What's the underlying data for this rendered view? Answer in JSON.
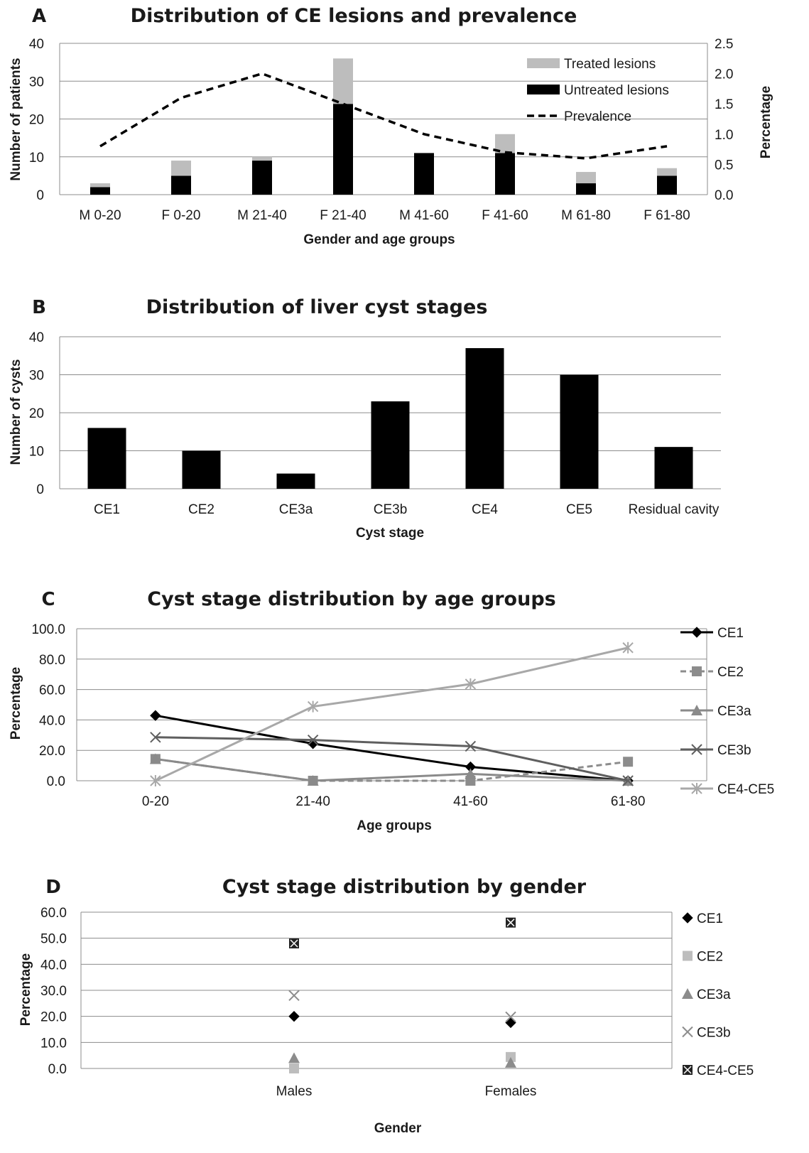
{
  "chart_data": [
    {
      "panel": "A",
      "type": "bar",
      "title": "Distribution of CE lesions and prevalence",
      "xlabel": "Gender and age groups",
      "ylabel": "Number of patients",
      "ylabel_right": "Percentage",
      "categories": [
        "M 0-20",
        "F 0-20",
        "M 21-40",
        "F 21-40",
        "M 41-60",
        "F 41-60",
        "M 61-80",
        "F 61-80"
      ],
      "ylim": [
        0,
        40
      ],
      "yticks": [
        "0",
        "10",
        "20",
        "30",
        "40"
      ],
      "ylim_right": [
        0,
        2.5
      ],
      "yticks_right": [
        "0.0",
        "0.5",
        "1.0",
        "1.5",
        "2.0",
        "2.5"
      ],
      "stacked": true,
      "series": [
        {
          "name": "Untreated lesions",
          "kind": "bar",
          "color": "#000000",
          "values": [
            2,
            5,
            9,
            24,
            11,
            11,
            3,
            5
          ]
        },
        {
          "name": "Treated lesions",
          "kind": "bar",
          "color": "#bdbdbd",
          "values": [
            1,
            4,
            1,
            12,
            0,
            5,
            3,
            2
          ]
        },
        {
          "name": "Prevalence",
          "kind": "line",
          "axis": "right",
          "dash": "dashed",
          "color": "#000000",
          "values": [
            0.8,
            1.6,
            2.0,
            1.5,
            1.0,
            0.7,
            0.6,
            0.8
          ]
        }
      ],
      "legend_position": "top-right",
      "grid": true
    },
    {
      "panel": "B",
      "type": "bar",
      "title": "Distribution of liver cyst stages",
      "xlabel": "Cyst stage",
      "ylabel": "Number of cysts",
      "categories": [
        "CE1",
        "CE2",
        "CE3a",
        "CE3b",
        "CE4",
        "CE5",
        "Residual cavity"
      ],
      "values": [
        16,
        10,
        4,
        23,
        37,
        30,
        11
      ],
      "ylim": [
        0,
        40
      ],
      "yticks": [
        "0",
        "10",
        "20",
        "30",
        "40"
      ],
      "color": "#000000",
      "grid": true
    },
    {
      "panel": "C",
      "type": "line",
      "title": "Cyst stage distribution by age groups",
      "xlabel": "Age groups",
      "ylabel": "Percentage",
      "categories": [
        "0-20",
        "21-40",
        "41-60",
        "61-80"
      ],
      "ylim": [
        0,
        100
      ],
      "yticks": [
        "0.0",
        "20.0",
        "40.0",
        "60.0",
        "80.0",
        "100.0"
      ],
      "series": [
        {
          "name": "CE1",
          "values": [
            42.9,
            24.4,
            9.1,
            0.0
          ],
          "color": "#000000",
          "marker": "diamond",
          "dash": "solid"
        },
        {
          "name": "CE2",
          "values": [
            14.3,
            0.0,
            0.0,
            12.5
          ],
          "color": "#8c8c8c",
          "marker": "square",
          "dash": "dashed"
        },
        {
          "name": "CE3a",
          "values": [
            14.3,
            0.0,
            4.5,
            0.0
          ],
          "color": "#8a8a8a",
          "marker": "triangle",
          "dash": "solid"
        },
        {
          "name": "CE3b",
          "values": [
            28.6,
            26.8,
            22.7,
            0.0
          ],
          "color": "#5f5f5f",
          "marker": "x",
          "dash": "solid"
        },
        {
          "name": "CE4-CE5",
          "values": [
            0.0,
            48.8,
            63.6,
            87.5
          ],
          "color": "#a8a8a8",
          "marker": "star",
          "dash": "solid"
        }
      ],
      "legend_position": "right",
      "grid": true
    },
    {
      "panel": "D",
      "type": "scatter",
      "title": "Cyst stage distribution by gender",
      "xlabel": "Gender",
      "ylabel": "Percentage",
      "categories": [
        "Males",
        "Females"
      ],
      "ylim": [
        0,
        60
      ],
      "yticks": [
        "0.0",
        "10.0",
        "20.0",
        "30.0",
        "40.0",
        "50.0",
        "60.0"
      ],
      "series": [
        {
          "name": "CE1",
          "values": [
            20.0,
            17.6
          ],
          "color": "#000000",
          "marker": "diamond"
        },
        {
          "name": "CE2",
          "values": [
            0.0,
            4.4
          ],
          "color": "#bdbdbd",
          "marker": "square"
        },
        {
          "name": "CE3a",
          "values": [
            4.0,
            2.2
          ],
          "color": "#8c8c8c",
          "marker": "triangle"
        },
        {
          "name": "CE3b",
          "values": [
            28.0,
            19.8
          ],
          "color": "#8c8c8c",
          "marker": "x"
        },
        {
          "name": "CE4-CE5",
          "values": [
            48.0,
            56.0
          ],
          "color": "#222222",
          "marker": "boxx"
        }
      ],
      "legend_position": "right",
      "grid": true
    }
  ]
}
